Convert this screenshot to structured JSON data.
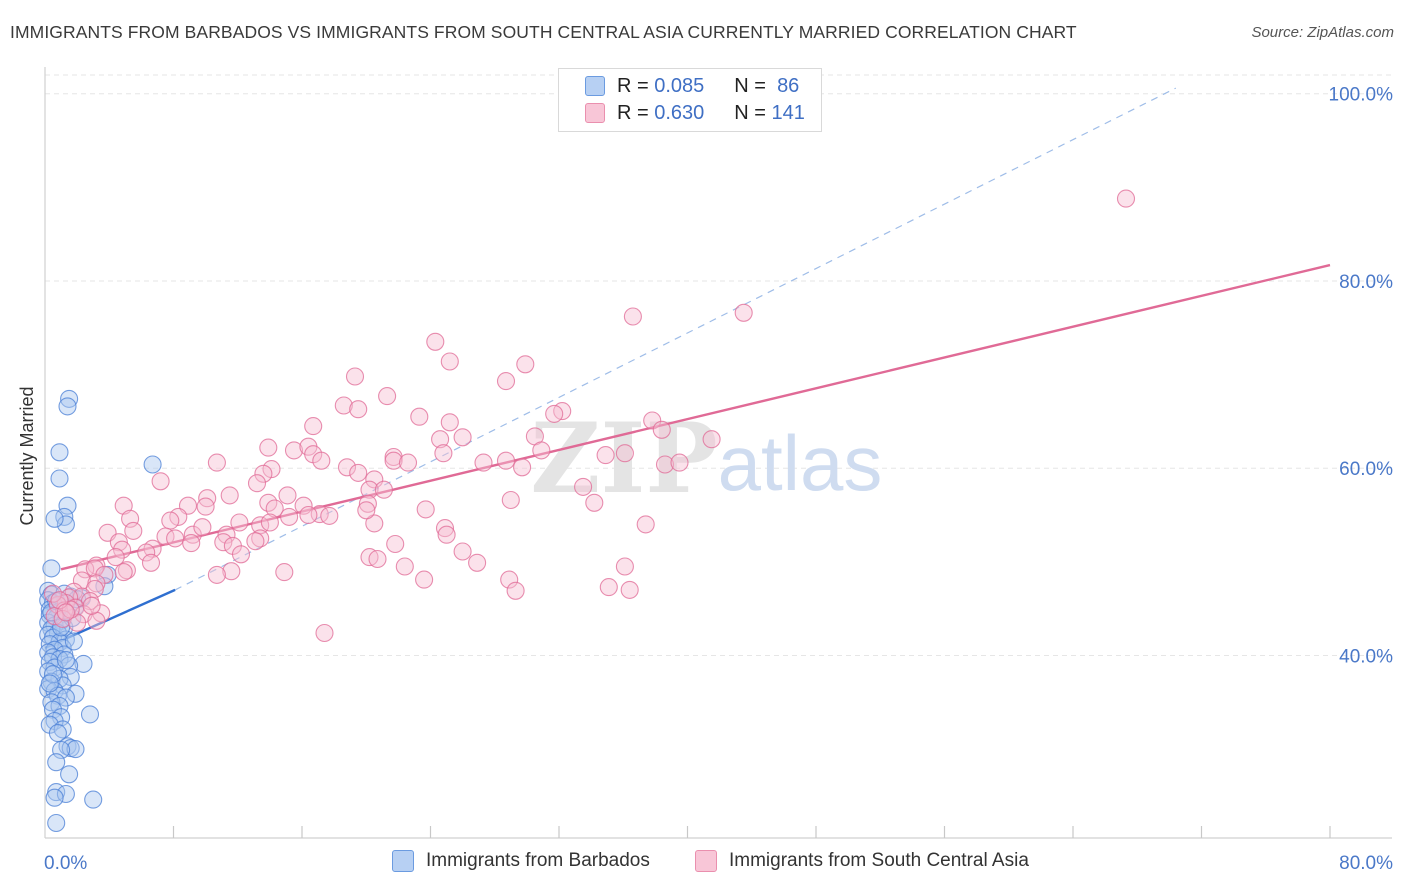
{
  "title": "IMMIGRANTS FROM BARBADOS VS IMMIGRANTS FROM SOUTH CENTRAL ASIA CURRENTLY MARRIED CORRELATION CHART",
  "source": "Source: ZipAtlas.com",
  "watermark": {
    "zip": "ZIP",
    "atlas": "atlas"
  },
  "legend": {
    "r_label": "R =",
    "n_label": "N =",
    "rows": [
      {
        "r": "0.085",
        "n": "86",
        "fill": "#b7d0f3",
        "stroke": "#6b9be0"
      },
      {
        "r": "0.630",
        "n": "141",
        "fill": "#f8c6d7",
        "stroke": "#ea8fae"
      }
    ]
  },
  "chart_data": {
    "type": "scatter",
    "xlabel": "",
    "ylabel": "Currently Married",
    "xlim": [
      0,
      80
    ],
    "ylim": [
      20.5,
      102
    ],
    "x_tick_labels": [
      "0.0%",
      "80.0%"
    ],
    "y_ticks": [
      40,
      60,
      80,
      100
    ],
    "y_tick_labels": [
      "40.0%",
      "60.0%",
      "80.0%",
      "100.0%"
    ],
    "grid": true,
    "legend_placement": "top-center",
    "colors": {
      "blue": "#4a7fd6",
      "blue_fill": "rgba(170,200,240,0.45)",
      "pink": "#e06a96",
      "pink_fill": "rgba(246,190,210,0.45)",
      "axis_text": "#4a78c8"
    },
    "series": [
      {
        "name": "Immigrants from Barbados",
        "color": "#4a7fd6",
        "trend": {
          "x": [
            0,
            8.1
          ],
          "y": [
            40.8,
            47.0
          ],
          "style": "solid"
        },
        "trend_extension": {
          "x": [
            8.1,
            70.4
          ],
          "y": [
            47.0,
            100.6
          ],
          "style": "dashed"
        },
        "points": [
          [
            1.5,
            67.4
          ],
          [
            1.4,
            66.6
          ],
          [
            0.9,
            61.7
          ],
          [
            0.9,
            58.9
          ],
          [
            1.4,
            56.0
          ],
          [
            1.2,
            54.8
          ],
          [
            1.3,
            54.0
          ],
          [
            0.6,
            54.6
          ],
          [
            6.7,
            60.4
          ],
          [
            0.4,
            49.3
          ],
          [
            3.9,
            48.6
          ],
          [
            3.7,
            47.4
          ],
          [
            0.2,
            46.9
          ],
          [
            0.4,
            46.5
          ],
          [
            1.6,
            46.3
          ],
          [
            1.2,
            46.6
          ],
          [
            2.3,
            46.1
          ],
          [
            0.2,
            45.9
          ],
          [
            0.5,
            45.6
          ],
          [
            1.2,
            45.5
          ],
          [
            0.8,
            45.3
          ],
          [
            0.3,
            44.9
          ],
          [
            0.9,
            44.7
          ],
          [
            1.9,
            45.2
          ],
          [
            0.3,
            44.3
          ],
          [
            0.7,
            44.0
          ],
          [
            1.0,
            43.7
          ],
          [
            0.2,
            43.5
          ],
          [
            0.6,
            43.2
          ],
          [
            1.2,
            43.0
          ],
          [
            0.4,
            42.8
          ],
          [
            0.8,
            42.4
          ],
          [
            0.2,
            42.2
          ],
          [
            0.5,
            41.9
          ],
          [
            1.3,
            41.7
          ],
          [
            0.9,
            41.4
          ],
          [
            0.3,
            41.2
          ],
          [
            1.1,
            40.8
          ],
          [
            0.6,
            40.6
          ],
          [
            0.2,
            40.3
          ],
          [
            1.2,
            40.1
          ],
          [
            0.5,
            39.8
          ],
          [
            0.9,
            39.6
          ],
          [
            0.3,
            39.3
          ],
          [
            2.4,
            39.1
          ],
          [
            1.5,
            38.9
          ],
          [
            0.6,
            38.7
          ],
          [
            0.2,
            38.3
          ],
          [
            1.6,
            37.7
          ],
          [
            0.9,
            37.5
          ],
          [
            0.4,
            37.2
          ],
          [
            1.1,
            36.8
          ],
          [
            0.2,
            36.4
          ],
          [
            0.6,
            36.2
          ],
          [
            1.9,
            35.9
          ],
          [
            0.8,
            35.7
          ],
          [
            1.3,
            35.5
          ],
          [
            0.4,
            35.0
          ],
          [
            0.9,
            34.6
          ],
          [
            0.5,
            34.2
          ],
          [
            2.8,
            33.7
          ],
          [
            1.0,
            33.4
          ],
          [
            0.6,
            33.0
          ],
          [
            0.3,
            32.6
          ],
          [
            1.1,
            32.1
          ],
          [
            0.8,
            31.7
          ],
          [
            1.4,
            30.3
          ],
          [
            1.6,
            30.1
          ],
          [
            1.9,
            30.0
          ],
          [
            1.0,
            29.9
          ],
          [
            0.7,
            28.6
          ],
          [
            1.5,
            27.3
          ],
          [
            0.7,
            25.4
          ],
          [
            1.3,
            25.2
          ],
          [
            0.6,
            24.8
          ],
          [
            3.0,
            24.6
          ],
          [
            0.7,
            22.1
          ],
          [
            0.4,
            44.6
          ],
          [
            1.7,
            44.0
          ],
          [
            1.0,
            43.0
          ],
          [
            0.5,
            38.0
          ],
          [
            1.8,
            41.5
          ],
          [
            0.3,
            37.0
          ],
          [
            0.7,
            45.8
          ],
          [
            1.3,
            39.5
          ],
          [
            2.0,
            46.0
          ]
        ]
      },
      {
        "name": "Immigrants from South Central Asia",
        "color": "#e06a96",
        "trend": {
          "x": [
            1.0,
            80.0
          ],
          "y": [
            49.2,
            81.7
          ],
          "style": "solid"
        },
        "points": [
          [
            67.3,
            88.8
          ],
          [
            36.6,
            76.2
          ],
          [
            43.5,
            76.6
          ],
          [
            24.3,
            73.5
          ],
          [
            25.2,
            71.4
          ],
          [
            29.9,
            71.1
          ],
          [
            19.3,
            69.8
          ],
          [
            28.7,
            69.3
          ],
          [
            21.3,
            67.7
          ],
          [
            18.6,
            66.7
          ],
          [
            19.5,
            66.3
          ],
          [
            32.2,
            66.1
          ],
          [
            31.7,
            65.8
          ],
          [
            23.3,
            65.5
          ],
          [
            37.8,
            65.1
          ],
          [
            25.2,
            64.9
          ],
          [
            16.7,
            64.5
          ],
          [
            38.4,
            64.1
          ],
          [
            41.5,
            63.1
          ],
          [
            30.5,
            63.4
          ],
          [
            24.6,
            63.1
          ],
          [
            26.0,
            63.3
          ],
          [
            13.9,
            62.2
          ],
          [
            15.5,
            61.9
          ],
          [
            16.4,
            62.3
          ],
          [
            24.8,
            61.6
          ],
          [
            21.7,
            61.2
          ],
          [
            16.7,
            61.5
          ],
          [
            17.2,
            60.8
          ],
          [
            34.9,
            61.4
          ],
          [
            36.1,
            61.6
          ],
          [
            28.7,
            60.8
          ],
          [
            38.6,
            60.4
          ],
          [
            39.5,
            60.6
          ],
          [
            21.7,
            60.8
          ],
          [
            22.6,
            60.6
          ],
          [
            10.7,
            60.6
          ],
          [
            14.1,
            59.9
          ],
          [
            18.8,
            60.1
          ],
          [
            29.7,
            60.1
          ],
          [
            19.5,
            59.5
          ],
          [
            13.6,
            59.4
          ],
          [
            20.5,
            58.8
          ],
          [
            13.2,
            58.4
          ],
          [
            7.2,
            58.6
          ],
          [
            33.5,
            58.0
          ],
          [
            20.2,
            57.7
          ],
          [
            21.1,
            57.7
          ],
          [
            11.5,
            57.1
          ],
          [
            15.1,
            57.1
          ],
          [
            10.1,
            56.8
          ],
          [
            13.9,
            56.3
          ],
          [
            4.9,
            56.0
          ],
          [
            8.9,
            56.0
          ],
          [
            10.0,
            55.9
          ],
          [
            16.1,
            56.0
          ],
          [
            14.3,
            55.7
          ],
          [
            17.1,
            55.1
          ],
          [
            23.7,
            55.6
          ],
          [
            29.0,
            56.6
          ],
          [
            34.2,
            56.3
          ],
          [
            20.1,
            56.2
          ],
          [
            8.3,
            54.8
          ],
          [
            15.2,
            54.8
          ],
          [
            16.4,
            55.0
          ],
          [
            17.7,
            54.9
          ],
          [
            5.3,
            54.6
          ],
          [
            7.8,
            54.4
          ],
          [
            12.1,
            54.2
          ],
          [
            13.4,
            53.9
          ],
          [
            14.0,
            54.2
          ],
          [
            20.5,
            54.1
          ],
          [
            24.9,
            53.6
          ],
          [
            37.4,
            54.0
          ],
          [
            3.9,
            53.1
          ],
          [
            5.5,
            53.3
          ],
          [
            7.5,
            52.7
          ],
          [
            9.2,
            52.9
          ],
          [
            8.1,
            52.5
          ],
          [
            11.3,
            52.9
          ],
          [
            25.0,
            52.9
          ],
          [
            13.4,
            52.5
          ],
          [
            11.1,
            52.1
          ],
          [
            9.1,
            52.0
          ],
          [
            4.6,
            52.1
          ],
          [
            13.1,
            52.2
          ],
          [
            6.7,
            51.4
          ],
          [
            21.8,
            51.9
          ],
          [
            11.7,
            51.7
          ],
          [
            4.8,
            51.3
          ],
          [
            26.0,
            51.1
          ],
          [
            6.3,
            51.0
          ],
          [
            20.2,
            50.5
          ],
          [
            20.7,
            50.3
          ],
          [
            12.2,
            50.8
          ],
          [
            4.4,
            50.5
          ],
          [
            26.9,
            49.9
          ],
          [
            3.2,
            49.6
          ],
          [
            6.6,
            49.9
          ],
          [
            2.5,
            49.2
          ],
          [
            3.1,
            49.3
          ],
          [
            5.1,
            49.1
          ],
          [
            22.4,
            49.5
          ],
          [
            36.1,
            49.5
          ],
          [
            3.7,
            48.6
          ],
          [
            11.6,
            49.0
          ],
          [
            14.9,
            48.9
          ],
          [
            10.7,
            48.6
          ],
          [
            4.9,
            48.9
          ],
          [
            23.6,
            48.1
          ],
          [
            28.9,
            48.1
          ],
          [
            2.3,
            48.0
          ],
          [
            3.2,
            47.7
          ],
          [
            35.1,
            47.3
          ],
          [
            36.4,
            47.0
          ],
          [
            29.3,
            46.9
          ],
          [
            1.8,
            46.8
          ],
          [
            3.1,
            47.1
          ],
          [
            2.3,
            46.3
          ],
          [
            1.5,
            46.2
          ],
          [
            2.8,
            45.8
          ],
          [
            1.3,
            45.6
          ],
          [
            0.8,
            45.4
          ],
          [
            1.9,
            45.1
          ],
          [
            1.2,
            44.8
          ],
          [
            2.4,
            44.4
          ],
          [
            3.5,
            44.5
          ],
          [
            0.6,
            44.2
          ],
          [
            1.1,
            43.9
          ],
          [
            3.2,
            43.7
          ],
          [
            2.0,
            43.5
          ],
          [
            17.4,
            42.4
          ],
          [
            0.5,
            46.6
          ],
          [
            1.6,
            44.9
          ],
          [
            0.9,
            45.9
          ],
          [
            2.9,
            45.3
          ],
          [
            1.3,
            44.6
          ],
          [
            30.9,
            61.9
          ],
          [
            27.3,
            60.6
          ],
          [
            20.0,
            55.5
          ],
          [
            9.8,
            53.7
          ]
        ]
      }
    ]
  }
}
